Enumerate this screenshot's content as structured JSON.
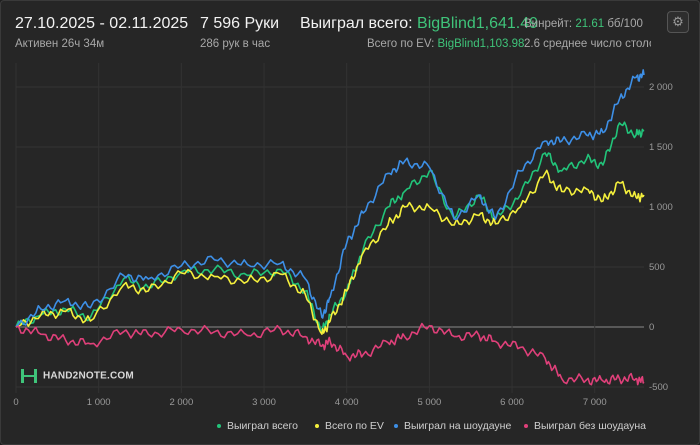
{
  "header": {
    "date_range": "27.10.2025 - 02.11.2025",
    "active_time": "Активен 26ч 34м",
    "hands_count": "7 596 Руки",
    "hands_per_hour": "286 рук в час",
    "won_total_label": "Выиграл всего:",
    "won_total_value": "BigBlind1,641.49",
    "ev_total_label": "Всего по EV:",
    "ev_total_value": "BigBlind1,103.98",
    "winrate_label": "Винрейт:",
    "winrate_value": "21.61",
    "winrate_unit": "бб/100",
    "avg_tables": "2.6 среднее число столо"
  },
  "logo_text": "HAND2NOTE.COM",
  "legend": [
    {
      "label": "Выиграл всего",
      "color": "#22c47a"
    },
    {
      "label": "Всего по EV",
      "color": "#f5f03c"
    },
    {
      "label": "Выиграл на шоудауне",
      "color": "#3d8fe6"
    },
    {
      "label": "Выиграл без шоудауна",
      "color": "#e0407a"
    }
  ],
  "chart_data": {
    "type": "line",
    "x_ticks": [
      "0",
      "1 000",
      "2 000",
      "3 000",
      "4 000",
      "5 000",
      "6 000",
      "7 000"
    ],
    "y_ticks": [
      "2 000",
      "1 500",
      "1 000",
      "500",
      "0",
      "-500"
    ],
    "xlim": [
      0,
      7596
    ],
    "ylim": [
      -550,
      2200
    ],
    "grid": true,
    "legend_position": "bottom-right",
    "series": [
      {
        "name": "Выиграл всего",
        "color": "#22c47a",
        "x": [
          0,
          300,
          600,
          900,
          1300,
          1600,
          2000,
          2400,
          2800,
          3200,
          3500,
          3700,
          3800,
          4000,
          4200,
          4500,
          4700,
          5000,
          5300,
          5600,
          5800,
          6100,
          6400,
          6600,
          6900,
          7100,
          7300,
          7500,
          7596
        ],
        "y": [
          0,
          100,
          150,
          80,
          400,
          330,
          460,
          480,
          430,
          480,
          300,
          -40,
          100,
          300,
          650,
          1000,
          1130,
          1300,
          900,
          1100,
          900,
          1100,
          1450,
          1300,
          1400,
          1350,
          1700,
          1600,
          1640
        ]
      },
      {
        "name": "Всего по EV",
        "color": "#f5f03c",
        "x": [
          0,
          300,
          600,
          900,
          1300,
          1600,
          2000,
          2400,
          2800,
          3200,
          3500,
          3700,
          3800,
          4000,
          4200,
          4500,
          4700,
          5000,
          5300,
          5600,
          5800,
          6100,
          6400,
          6600,
          6900,
          7100,
          7300,
          7500,
          7596
        ],
        "y": [
          0,
          100,
          130,
          50,
          350,
          300,
          450,
          420,
          380,
          440,
          270,
          -60,
          50,
          300,
          620,
          850,
          1000,
          1000,
          850,
          930,
          860,
          1000,
          1280,
          1130,
          1150,
          1050,
          1200,
          1080,
          1100
        ]
      },
      {
        "name": "Выиграл на шоудауне",
        "color": "#3d8fe6",
        "x": [
          0,
          300,
          600,
          900,
          1300,
          1600,
          2000,
          2400,
          2800,
          3200,
          3500,
          3700,
          3800,
          4000,
          4200,
          4500,
          4700,
          5000,
          5300,
          5600,
          5800,
          6100,
          6400,
          6600,
          6900,
          7100,
          7300,
          7500,
          7596
        ],
        "y": [
          0,
          150,
          220,
          160,
          430,
          400,
          510,
          560,
          520,
          530,
          400,
          80,
          250,
          700,
          950,
          1280,
          1380,
          1330,
          900,
          1100,
          900,
          1300,
          1550,
          1550,
          1600,
          1620,
          1900,
          2080,
          2100
        ]
      },
      {
        "name": "Выиграл без шоудауна",
        "color": "#e0407a",
        "x": [
          0,
          300,
          600,
          900,
          1300,
          1600,
          2000,
          2400,
          2800,
          3200,
          3500,
          3700,
          3800,
          4000,
          4200,
          4500,
          4700,
          5000,
          5300,
          5600,
          5800,
          6100,
          6400,
          6600,
          6900,
          7100,
          7300,
          7500,
          7596
        ],
        "y": [
          0,
          -60,
          -110,
          -140,
          -40,
          -60,
          -20,
          -40,
          -70,
          -20,
          -80,
          -160,
          -120,
          -240,
          -230,
          -130,
          -80,
          10,
          -80,
          -70,
          -120,
          -170,
          -260,
          -430,
          -440,
          -450,
          -430,
          -430,
          -460
        ]
      }
    ]
  }
}
